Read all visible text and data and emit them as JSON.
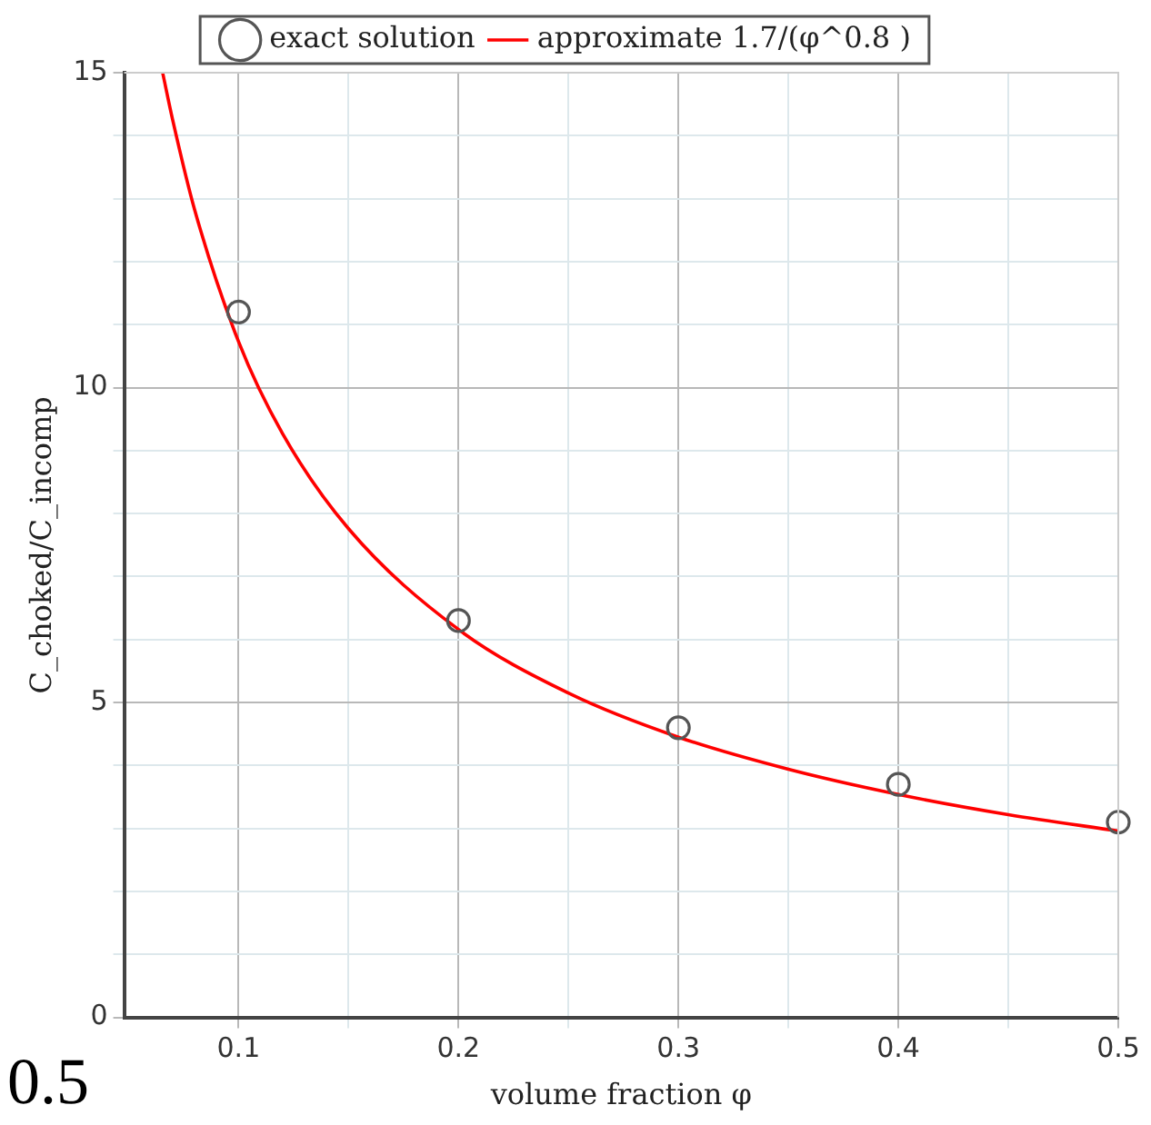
{
  "chart_data": {
    "type": "scatter",
    "xlabel": "volume fraction φ",
    "ylabel": "C_choked/C_incomp",
    "xlim": [
      0.048,
      0.5
    ],
    "xticks": [
      0.1,
      {
        "value": 0.15,
        "label": null
      },
      0.2,
      {
        "value": 0.25,
        "label": null
      },
      0.3,
      {
        "value": 0.35,
        "label": null
      },
      0.4,
      {
        "value": 0.45,
        "label": null
      },
      0.5
    ],
    "ylim": [
      0,
      15
    ],
    "yticks": [
      0,
      {
        "value": 1,
        "label": null
      },
      {
        "value": 2,
        "label": null
      },
      {
        "value": 3,
        "label": null
      },
      {
        "value": 4,
        "label": null
      },
      5,
      {
        "value": 6,
        "label": null
      },
      {
        "value": 7,
        "label": null
      },
      {
        "value": 8,
        "label": null
      },
      {
        "value": 9,
        "label": null
      },
      10,
      {
        "value": 11,
        "label": null
      },
      {
        "value": 12,
        "label": null
      },
      {
        "value": 13,
        "label": null
      },
      {
        "value": 14,
        "label": null
      },
      15
    ],
    "grid": true,
    "legend": "top",
    "marker": "circle",
    "series": [
      {
        "name": "exact solution",
        "color": "#555555",
        "x": [
          0.1,
          0.2,
          0.3,
          0.4,
          0.5
        ],
        "values": [
          11.2,
          6.3,
          4.6,
          3.7,
          3.1
        ]
      },
      {
        "name": "approximate 1.7/(φ^0.8 )",
        "type": "line",
        "color": "#ff0000",
        "marker": "none",
        "line_style": "solid",
        "x": [
          0.0655,
          0.07,
          0.08,
          0.1,
          0.12,
          0.15,
          0.2,
          0.25,
          0.3,
          0.35,
          0.4,
          0.45,
          0.5
        ],
        "values": [
          15,
          14.26,
          12.83,
          10.73,
          9.27,
          7.76,
          6.16,
          5.15,
          4.45,
          3.94,
          3.54,
          3.22,
          2.96
        ]
      }
    ],
    "annotations": [
      "0.5"
    ]
  }
}
